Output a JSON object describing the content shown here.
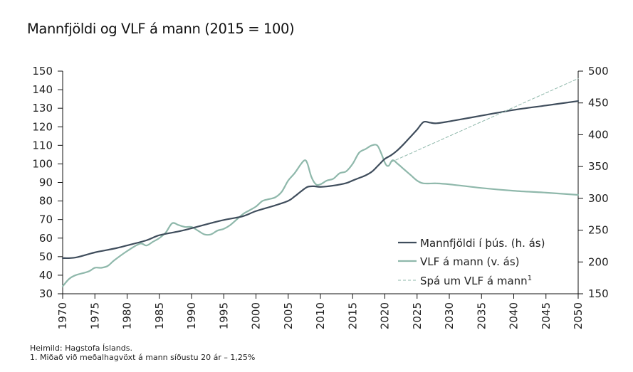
{
  "title": "Mannfjöldi og VLF á mann (2015 = 100)",
  "footnotes": {
    "source": "Heimild: Hagstofa Íslands.",
    "note": "1. Miðað við meðalhagvöxt á mann síðustu 20 ár – 1,25%"
  },
  "colors": {
    "population": "#3f4d5c",
    "gdp": "#8fb8ab",
    "forecast": "#8fb8ab",
    "axis": "#111111"
  },
  "chart_data": {
    "type": "line",
    "title": "Mannfjöldi og VLF á mann (2015 = 100)",
    "xlabel": "",
    "ylabel_left": "VLF á mann (2015 = 100)",
    "ylabel_right": "Mannfjöldi í þús.",
    "xlim": [
      1970,
      2050
    ],
    "ylim_left": [
      30,
      150
    ],
    "ylim_right": [
      150,
      500
    ],
    "x_ticks": [
      "1970",
      "1975",
      "1980",
      "1985",
      "1990",
      "1995",
      "2000",
      "2005",
      "2010",
      "2015",
      "2020",
      "2025",
      "2030",
      "2035",
      "2040",
      "2045",
      "2050"
    ],
    "y_ticks_left": [
      "30",
      "40",
      "50",
      "60",
      "70",
      "80",
      "90",
      "100",
      "110",
      "120",
      "130",
      "140",
      "150"
    ],
    "y_ticks_right": [
      "150",
      "200",
      "250",
      "300",
      "350",
      "400",
      "450",
      "500"
    ],
    "grid": false,
    "legend_position": "bottom-right",
    "series": [
      {
        "name": "Mannfjöldi í þús. (h. ás)",
        "axis": "right",
        "style": "solid",
        "x": [
          1970,
          1972,
          1975,
          1978,
          1980,
          1983,
          1985,
          1988,
          1990,
          1993,
          1995,
          1998,
          2000,
          2003,
          2005,
          2006,
          2007,
          2008,
          2009,
          2010,
          2012,
          2014,
          2015,
          2016,
          2017,
          2018,
          2019,
          2020,
          2021,
          2022,
          2023,
          2024,
          2025,
          2026,
          2027,
          2028,
          2030,
          2035,
          2040,
          2045,
          2050
        ],
        "values": [
          206,
          207,
          215,
          221,
          226,
          234,
          242,
          248,
          253,
          261,
          266,
          272,
          280,
          289,
          296,
          303,
          311,
          318,
          319,
          318,
          320,
          324,
          328,
          332,
          336,
          342,
          352,
          362,
          368,
          376,
          386,
          397,
          408,
          420,
          419,
          418,
          421,
          430,
          439,
          446,
          453
        ]
      },
      {
        "name": "VLF á mann (v. ás)",
        "axis": "left",
        "style": "solid",
        "x": [
          1970,
          1971,
          1972,
          1974,
          1975,
          1976,
          1977,
          1978,
          1980,
          1982,
          1983,
          1984,
          1985,
          1986,
          1987,
          1988,
          1989,
          1990,
          1991,
          1992,
          1993,
          1994,
          1995,
          1996,
          1997,
          1998,
          1999,
          2000,
          2001,
          2002,
          2003,
          2004,
          2005,
          2006,
          2007,
          2007.6,
          2008,
          2008.6,
          2009.3,
          2010,
          2011,
          2012,
          2013,
          2014,
          2015,
          2016,
          2017,
          2018,
          2018.8,
          2019.4,
          2020.1,
          2020.6,
          2021.2,
          2022,
          2023,
          2024,
          2025,
          2026,
          2028,
          2030,
          2035,
          2040,
          2045,
          2050
        ],
        "values": [
          34,
          38,
          40,
          42,
          44,
          44,
          45,
          48,
          53,
          57,
          56,
          58,
          60,
          63,
          68,
          67,
          66,
          66,
          64,
          62,
          62,
          64,
          65,
          67,
          70,
          73,
          75,
          77,
          80,
          81,
          82,
          85,
          91,
          95,
          100,
          102,
          100,
          93,
          89,
          89,
          91,
          92,
          95,
          96,
          100,
          106,
          108,
          110,
          110,
          106,
          100,
          99,
          102,
          100,
          97,
          94,
          91,
          89.5,
          89.5,
          89,
          87,
          85.5,
          84.5,
          83.3
        ]
      },
      {
        "name": "Spá um VLF á mann¹",
        "axis": "left",
        "style": "dashed",
        "x": [
          2021,
          2050
        ],
        "values": [
          101,
          146
        ]
      }
    ],
    "legend": [
      {
        "label": "Mannfjöldi í þús. (h. ás)",
        "style": "solid",
        "series": "population"
      },
      {
        "label": "VLF á mann (v. ás)",
        "style": "solid",
        "series": "gdp"
      },
      {
        "label": "Spá um VLF á mann",
        "superscript": "1",
        "style": "dashed",
        "series": "forecast"
      }
    ]
  }
}
